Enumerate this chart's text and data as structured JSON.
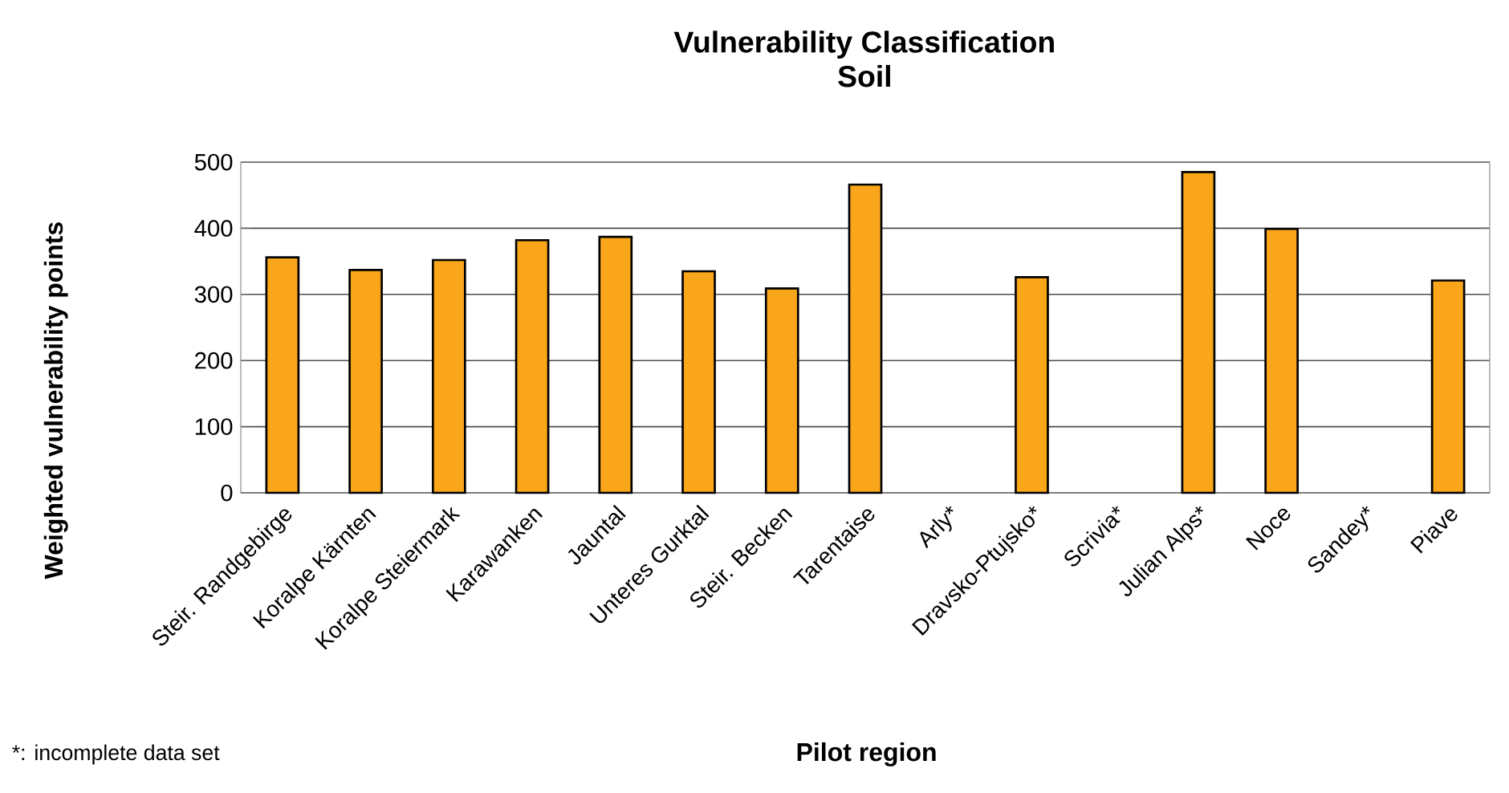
{
  "chart_data": {
    "type": "bar",
    "title": "Vulnerability Classification",
    "subtitle": "Soil",
    "xlabel": "Pilot region",
    "ylabel": "Weighted  vulnerability points",
    "categories": [
      "Steir. Randgebirge",
      "Koralpe Kärnten",
      "Koralpe Steiermark",
      "Karawanken",
      "Jauntal",
      "Unteres Gurktal",
      "Steir. Becken",
      "Tarentaise",
      "Arly*",
      "Dravsko-Ptujsko*",
      "Scrivia*",
      "Julian Alps*",
      "Noce",
      "Sandey*",
      "Piave"
    ],
    "values": [
      356,
      337,
      352,
      382,
      387,
      335,
      309,
      466,
      null,
      326,
      null,
      485,
      399,
      null,
      321
    ],
    "color": "#f9a61a",
    "ylim": [
      0,
      500
    ],
    "yticks": [
      0,
      100,
      200,
      300,
      400,
      500
    ],
    "grid": "y",
    "annotations": [
      "*: incomplete data set"
    ]
  }
}
